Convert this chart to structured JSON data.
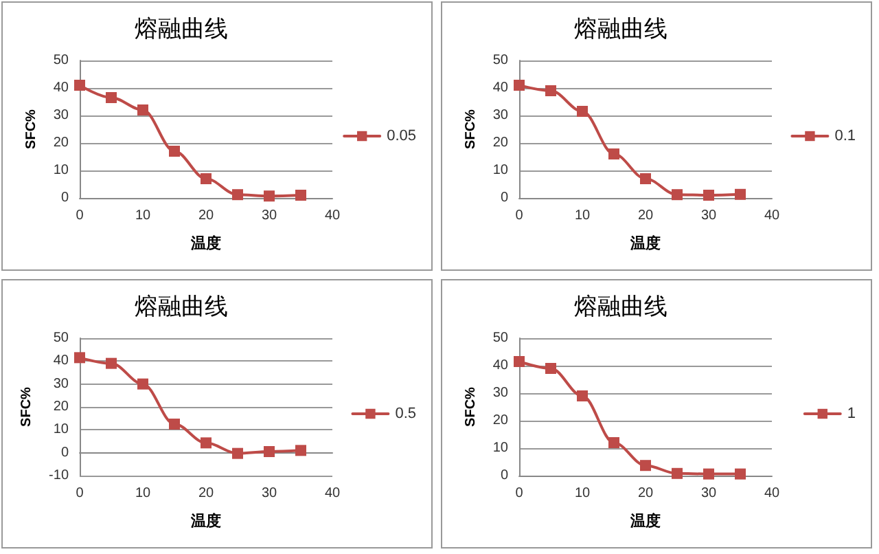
{
  "chart_data": [
    {
      "type": "line",
      "title": "熔融曲线",
      "xlabel": "温度",
      "ylabel": "SFC%",
      "x": [
        0,
        5,
        10,
        15,
        20,
        25,
        30,
        35
      ],
      "xlim": [
        0,
        40
      ],
      "xticks": [
        0,
        10,
        20,
        30,
        40
      ],
      "ylim": [
        0,
        50
      ],
      "yticks": [
        0,
        10,
        20,
        30,
        40,
        50
      ],
      "grid": "y",
      "legend": "right",
      "marker": "square",
      "series": [
        {
          "name": "0.05",
          "color": "#be4b48",
          "values": [
            41,
            36.5,
            32,
            17,
            7,
            1.2,
            0.7,
            1
          ]
        }
      ]
    },
    {
      "type": "line",
      "title": "熔融曲线",
      "xlabel": "温度",
      "ylabel": "SFC%",
      "x": [
        0,
        5,
        10,
        15,
        20,
        25,
        30,
        35
      ],
      "xlim": [
        0,
        40
      ],
      "xticks": [
        0,
        10,
        20,
        30,
        40
      ],
      "ylim": [
        0,
        50
      ],
      "yticks": [
        0,
        10,
        20,
        30,
        40,
        50
      ],
      "grid": "y",
      "legend": "right",
      "marker": "square",
      "series": [
        {
          "name": "0.1",
          "color": "#be4b48",
          "values": [
            41,
            39,
            31.5,
            16,
            7,
            1.2,
            1,
            1.3
          ]
        }
      ]
    },
    {
      "type": "line",
      "title": "熔融曲线",
      "xlabel": "温度",
      "ylabel": "SFC%",
      "x": [
        0,
        5,
        10,
        15,
        20,
        25,
        30,
        35
      ],
      "xlim": [
        0,
        40
      ],
      "xticks": [
        0,
        10,
        20,
        30,
        40
      ],
      "ylim": [
        -10,
        50
      ],
      "yticks": [
        -10,
        0,
        10,
        20,
        30,
        40,
        50
      ],
      "grid": "y",
      "legend": "right",
      "marker": "square",
      "series": [
        {
          "name": "0.5",
          "color": "#be4b48",
          "values": [
            41.5,
            39,
            30,
            12.5,
            4.3,
            -0.3,
            0.5,
            1
          ]
        }
      ]
    },
    {
      "type": "line",
      "title": "熔融曲线",
      "xlabel": "温度",
      "ylabel": "SFC%",
      "x": [
        0,
        5,
        10,
        15,
        20,
        25,
        30,
        35
      ],
      "xlim": [
        0,
        40
      ],
      "xticks": [
        0,
        10,
        20,
        30,
        40
      ],
      "ylim": [
        0,
        50
      ],
      "yticks": [
        0,
        10,
        20,
        30,
        40,
        50
      ],
      "grid": "y",
      "legend": "right",
      "marker": "square",
      "series": [
        {
          "name": "1",
          "color": "#be4b48",
          "values": [
            41.5,
            39,
            29,
            12,
            3.7,
            0.8,
            0.6,
            0.6
          ]
        }
      ]
    }
  ]
}
